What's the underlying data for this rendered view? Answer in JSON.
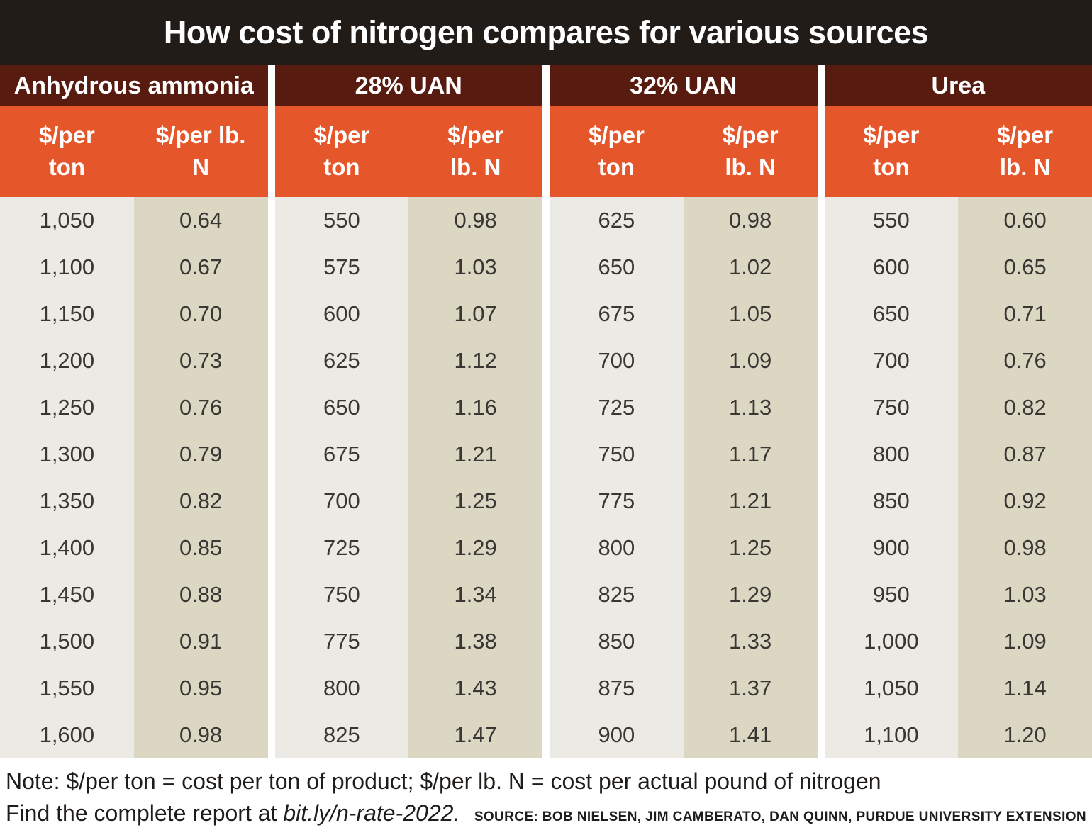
{
  "title": "How cost of nitrogen compares for various sources",
  "colors": {
    "title_bar": "#211c18",
    "group_header": "#571b10",
    "column_header": "#e6562b",
    "column_light": "#eceae5",
    "column_beige": "#dbd7c2",
    "cell_text": "#3a3633"
  },
  "chart_data": {
    "type": "table",
    "title": "How cost of nitrogen compares for various sources",
    "groups": [
      {
        "label": "Anhydrous ammonia",
        "col1_line1": "$/per",
        "col1_line2": "ton",
        "col2_line1": "$/per lb.",
        "col2_line2": "N"
      },
      {
        "label": "28% UAN",
        "col1_line1": "$/per",
        "col1_line2": "ton",
        "col2_line1": "$/per",
        "col2_line2": "lb. N"
      },
      {
        "label": "32% UAN",
        "col1_line1": "$/per",
        "col1_line2": "ton",
        "col2_line1": "$/per",
        "col2_line2": "lb. N"
      },
      {
        "label": "Urea",
        "col1_line1": "$/per",
        "col1_line2": "ton",
        "col2_line1": "$/per",
        "col2_line2": "lb. N"
      }
    ],
    "columns": [
      "Anhydrous ammonia $/per ton",
      "Anhydrous ammonia $/per lb. N",
      "28% UAN $/per ton",
      "28% UAN $/per lb. N",
      "32% UAN $/per ton",
      "32% UAN $/per lb. N",
      "Urea $/per ton",
      "Urea $/per lb. N"
    ],
    "rows": [
      [
        "1,050",
        "0.64",
        "550",
        "0.98",
        "625",
        "0.98",
        "550",
        "0.60"
      ],
      [
        "1,100",
        "0.67",
        "575",
        "1.03",
        "650",
        "1.02",
        "600",
        "0.65"
      ],
      [
        "1,150",
        "0.70",
        "600",
        "1.07",
        "675",
        "1.05",
        "650",
        "0.71"
      ],
      [
        "1,200",
        "0.73",
        "625",
        "1.12",
        "700",
        "1.09",
        "700",
        "0.76"
      ],
      [
        "1,250",
        "0.76",
        "650",
        "1.16",
        "725",
        "1.13",
        "750",
        "0.82"
      ],
      [
        "1,300",
        "0.79",
        "675",
        "1.21",
        "750",
        "1.17",
        "800",
        "0.87"
      ],
      [
        "1,350",
        "0.82",
        "700",
        "1.25",
        "775",
        "1.21",
        "850",
        "0.92"
      ],
      [
        "1,400",
        "0.85",
        "725",
        "1.29",
        "800",
        "1.25",
        "900",
        "0.98"
      ],
      [
        "1,450",
        "0.88",
        "750",
        "1.34",
        "825",
        "1.29",
        "950",
        "1.03"
      ],
      [
        "1,500",
        "0.91",
        "775",
        "1.38",
        "850",
        "1.33",
        "1,000",
        "1.09"
      ],
      [
        "1,550",
        "0.95",
        "800",
        "1.43",
        "875",
        "1.37",
        "1,050",
        "1.14"
      ],
      [
        "1,600",
        "0.98",
        "825",
        "1.47",
        "900",
        "1.41",
        "1,100",
        "1.20"
      ]
    ]
  },
  "notes": {
    "definition": "Note: $/per ton = cost per ton of product; $/per lb. N = cost per actual pound of nitrogen",
    "find_prefix": "Find the complete report at ",
    "find_link": "bit.ly/n-rate-2022.",
    "source": "SOURCE: BOB NIELSEN, JIM CAMBERATO, DAN QUINN, PURDUE UNIVERSITY EXTENSION"
  }
}
